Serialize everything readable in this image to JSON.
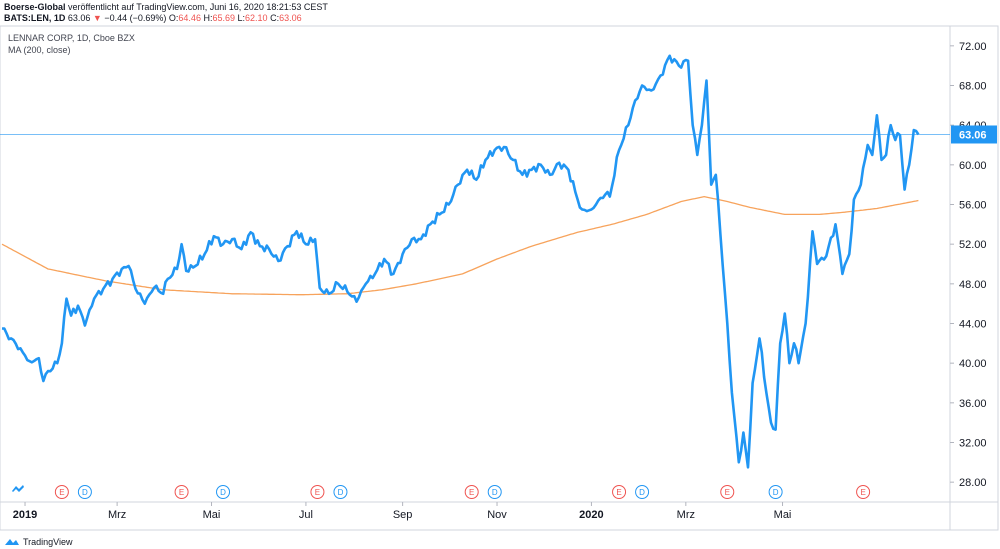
{
  "header": {
    "publisher": "Boerse-Global",
    "published_text": "veröffentlicht auf TradingView.com, Juni 16, 2020 18:21:53 CEST",
    "symbol": "BATS:LEN, 1D",
    "last": "63.06",
    "change": "−0.44 (−0.69%)",
    "o_label": "O:",
    "o_value": "64.46",
    "h_label": "H:",
    "h_value": "65.69",
    "l_label": "L:",
    "l_value": "62.10",
    "c_label": "C:",
    "c_value": "63.06"
  },
  "legend": {
    "line1": "LENNAR CORP, 1D, Cboe BZX",
    "line2": "MA (200, close)"
  },
  "footer": {
    "brand": "TradingView"
  },
  "colors": {
    "price": "#2196f3",
    "ma": "#f7a35c",
    "last_label_bg": "#2196f3",
    "earnings": "#ef5350",
    "dividend": "#2196f3"
  },
  "chart_data": {
    "type": "line",
    "ylim": [
      26,
      74
    ],
    "y_ticks": [
      "72.00",
      "68.00",
      "64.00",
      "60.00",
      "56.00",
      "52.00",
      "48.00",
      "44.00",
      "40.00",
      "36.00",
      "32.00",
      "28.00"
    ],
    "x_labels": [
      {
        "label": "2019",
        "index": 10,
        "bold": true
      },
      {
        "label": "Mrz",
        "index": 50
      },
      {
        "label": "Mai",
        "index": 91
      },
      {
        "label": "Jul",
        "index": 132
      },
      {
        "label": "Sep",
        "index": 174
      },
      {
        "label": "Nov",
        "index": 215
      },
      {
        "label": "2020",
        "index": 256,
        "bold": true
      },
      {
        "label": "Mrz",
        "index": 297
      },
      {
        "label": "Mai",
        "index": 339
      }
    ],
    "last_value": 63.06,
    "last_value_label": "63.06",
    "events": [
      {
        "type": "E",
        "index": 26
      },
      {
        "type": "D",
        "index": 36
      },
      {
        "type": "E",
        "index": 78
      },
      {
        "type": "D",
        "index": 96
      },
      {
        "type": "E",
        "index": 137
      },
      {
        "type": "D",
        "index": 147
      },
      {
        "type": "E",
        "index": 204
      },
      {
        "type": "D",
        "index": 214
      },
      {
        "type": "E",
        "index": 268
      },
      {
        "type": "D",
        "index": 278
      },
      {
        "type": "E",
        "index": 315
      },
      {
        "type": "D",
        "index": 336
      },
      {
        "type": "E",
        "index": 374
      }
    ],
    "series": [
      {
        "name": "LENNAR CORP",
        "anchors": [
          [
            0,
            43.5
          ],
          [
            4,
            42.5
          ],
          [
            8,
            41.5
          ],
          [
            12,
            40.2
          ],
          [
            16,
            40.5
          ],
          [
            18,
            38.2
          ],
          [
            20,
            39.2
          ],
          [
            24,
            40
          ],
          [
            26,
            42
          ],
          [
            28,
            46.5
          ],
          [
            30,
            44.8
          ],
          [
            33,
            45.8
          ],
          [
            36,
            43.8
          ],
          [
            40,
            46.5
          ],
          [
            44,
            47.5
          ],
          [
            48,
            48.5
          ],
          [
            52,
            49.5
          ],
          [
            55,
            49.8
          ],
          [
            58,
            47.5
          ],
          [
            62,
            46
          ],
          [
            66,
            47.6
          ],
          [
            70,
            47
          ],
          [
            72,
            48.5
          ],
          [
            76,
            49.5
          ],
          [
            78,
            52
          ],
          [
            80,
            49.3
          ],
          [
            84,
            49.8
          ],
          [
            88,
            51
          ],
          [
            92,
            52.8
          ],
          [
            96,
            52
          ],
          [
            100,
            52.5
          ],
          [
            104,
            51.5
          ],
          [
            108,
            53.2
          ],
          [
            112,
            51.8
          ],
          [
            116,
            51.5
          ],
          [
            120,
            50.3
          ],
          [
            124,
            51.8
          ],
          [
            128,
            53.3
          ],
          [
            132,
            52
          ],
          [
            136,
            52.5
          ],
          [
            138,
            47.6
          ],
          [
            142,
            47
          ],
          [
            146,
            48
          ],
          [
            150,
            47.2
          ],
          [
            154,
            46.2
          ],
          [
            158,
            48
          ],
          [
            162,
            49
          ],
          [
            166,
            50.5
          ],
          [
            170,
            49
          ],
          [
            174,
            51
          ],
          [
            178,
            52.5
          ],
          [
            182,
            52.5
          ],
          [
            186,
            54
          ],
          [
            190,
            55
          ],
          [
            194,
            56
          ],
          [
            198,
            58
          ],
          [
            202,
            59.5
          ],
          [
            206,
            58.5
          ],
          [
            210,
            60.5
          ],
          [
            214,
            61.5
          ],
          [
            218,
            61.8
          ],
          [
            222,
            60.5
          ],
          [
            226,
            59
          ],
          [
            230,
            59.5
          ],
          [
            234,
            60
          ],
          [
            238,
            59
          ],
          [
            242,
            60.2
          ],
          [
            246,
            59.5
          ],
          [
            250,
            56.5
          ],
          [
            252,
            55.5
          ],
          [
            256,
            55.5
          ],
          [
            258,
            56
          ],
          [
            262,
            57
          ],
          [
            264,
            56.8
          ],
          [
            268,
            61.5
          ],
          [
            272,
            64
          ],
          [
            275,
            66.5
          ],
          [
            278,
            68
          ],
          [
            282,
            67.5
          ],
          [
            286,
            69
          ],
          [
            290,
            71
          ],
          [
            294,
            70
          ],
          [
            298,
            70.5
          ],
          [
            300,
            64
          ],
          [
            302,
            61
          ],
          [
            304,
            64
          ],
          [
            306,
            68.5
          ],
          [
            308,
            58
          ],
          [
            310,
            59
          ],
          [
            314,
            47
          ],
          [
            317,
            37
          ],
          [
            320,
            30
          ],
          [
            322,
            33
          ],
          [
            324,
            29.5
          ],
          [
            326,
            38
          ],
          [
            329,
            42.5
          ],
          [
            332,
            37
          ],
          [
            334,
            34
          ],
          [
            336,
            33.3
          ],
          [
            338,
            42
          ],
          [
            340,
            45
          ],
          [
            342,
            40
          ],
          [
            344,
            42
          ],
          [
            346,
            40
          ],
          [
            349,
            44
          ],
          [
            352,
            53.3
          ],
          [
            354,
            50
          ],
          [
            358,
            50.8
          ],
          [
            362,
            54
          ],
          [
            365,
            49
          ],
          [
            368,
            51
          ],
          [
            370,
            56.5
          ],
          [
            373,
            58
          ],
          [
            376,
            62
          ],
          [
            378,
            61
          ],
          [
            380,
            65
          ],
          [
            382,
            60.5
          ],
          [
            384,
            61
          ],
          [
            386,
            64
          ],
          [
            388,
            62.5
          ],
          [
            390,
            63
          ],
          [
            392,
            57.5
          ],
          [
            394,
            60
          ],
          [
            396,
            63.5
          ],
          [
            398,
            63.06
          ]
        ]
      },
      {
        "name": "MA (200, close)",
        "anchors": [
          [
            0,
            52
          ],
          [
            20,
            49.5
          ],
          [
            45,
            48.3
          ],
          [
            70,
            47.4
          ],
          [
            100,
            47
          ],
          [
            130,
            46.9
          ],
          [
            150,
            47
          ],
          [
            165,
            47.4
          ],
          [
            180,
            48
          ],
          [
            200,
            49
          ],
          [
            215,
            50.5
          ],
          [
            230,
            51.8
          ],
          [
            250,
            53.2
          ],
          [
            265,
            54
          ],
          [
            280,
            55
          ],
          [
            295,
            56.3
          ],
          [
            305,
            56.8
          ],
          [
            315,
            56.3
          ],
          [
            325,
            55.7
          ],
          [
            340,
            55
          ],
          [
            355,
            55
          ],
          [
            365,
            55.2
          ],
          [
            380,
            55.6
          ],
          [
            398,
            56.4
          ]
        ]
      }
    ]
  }
}
